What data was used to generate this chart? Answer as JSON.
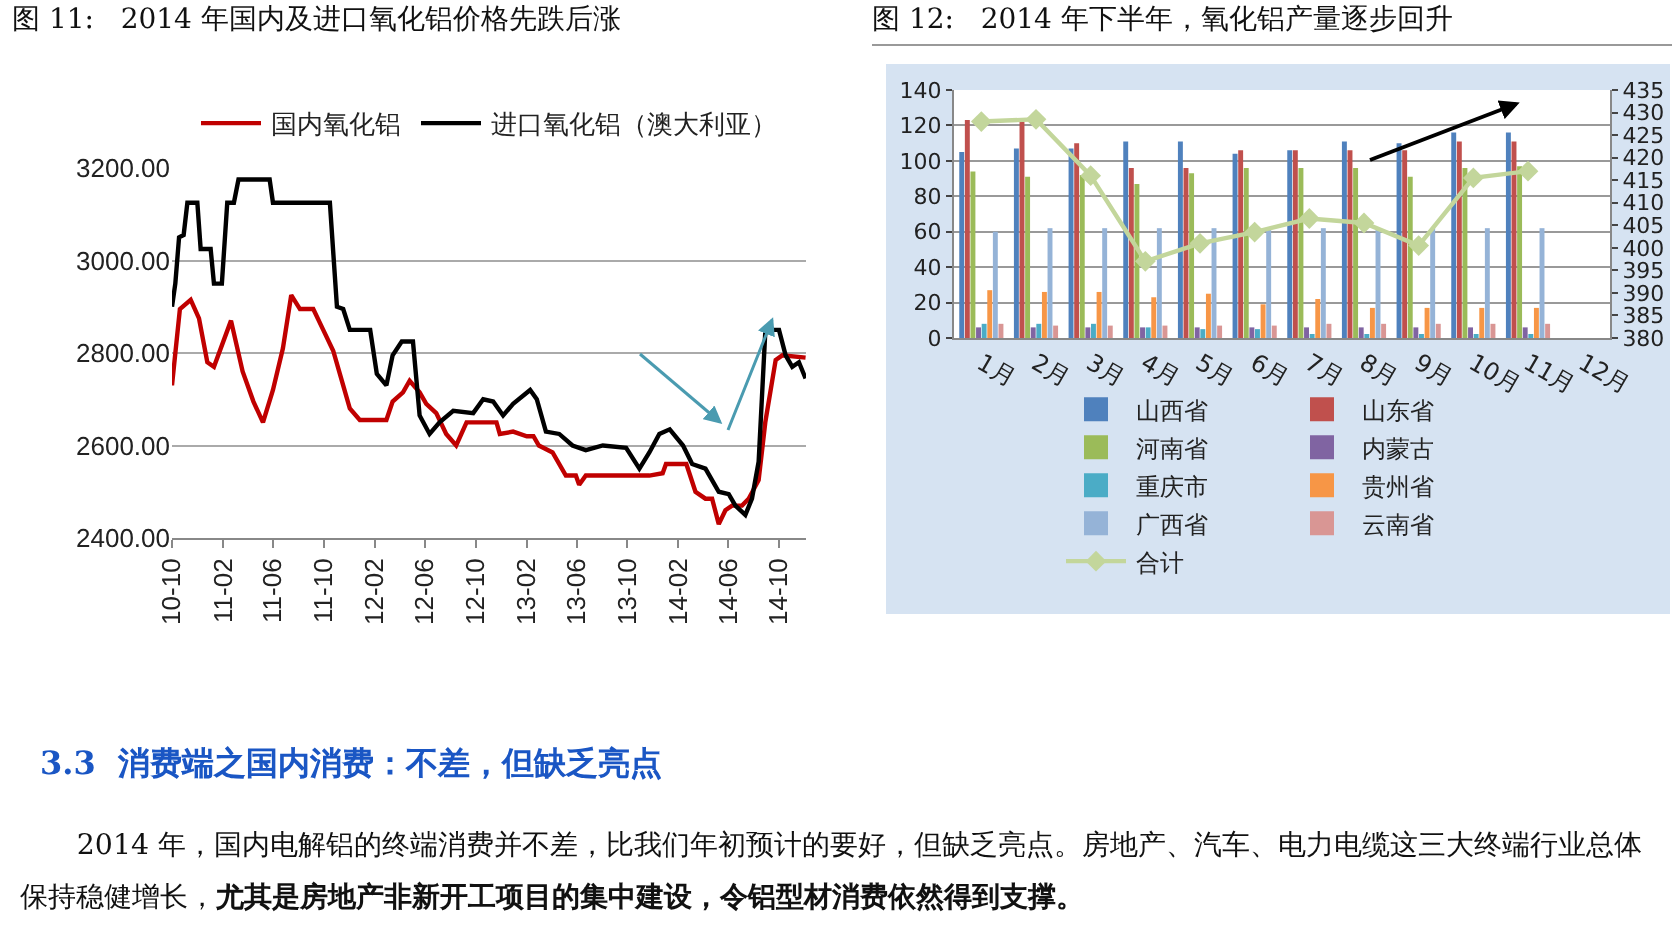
{
  "chart_data": [
    {
      "type": "line",
      "title": "图 11:   2014 年国内及进口氧化铝价格先跌后涨",
      "legend": "top",
      "grid": "y",
      "xlim": [
        "2010-10-01",
        "2014-12-05"
      ],
      "ylim": [
        2400,
        3200
      ],
      "xticks": [
        {
          "value": "2010-10-01",
          "label": "10-10"
        },
        {
          "value": "2011-02-01",
          "label": "11-02"
        },
        {
          "value": "2011-06-01",
          "label": "11-06"
        },
        {
          "value": "2011-10-01",
          "label": "11-10"
        },
        {
          "value": "2012-02-01",
          "label": "12-02"
        },
        {
          "value": "2012-06-01",
          "label": "12-06"
        },
        {
          "value": "2012-10-01",
          "label": "12-10"
        },
        {
          "value": "2013-02-01",
          "label": "13-02"
        },
        {
          "value": "2013-06-01",
          "label": "13-06"
        },
        {
          "value": "2013-10-01",
          "label": "13-10"
        },
        {
          "value": "2014-02-01",
          "label": "14-02"
        },
        {
          "value": "2014-06-01",
          "label": "14-06"
        },
        {
          "value": "2014-10-01",
          "label": "14-10"
        }
      ],
      "yticks": [
        {
          "value": 2400,
          "label": "2400.00"
        },
        {
          "value": 2600,
          "label": "2600.00"
        },
        {
          "value": 2800,
          "label": "2800.00"
        },
        {
          "value": 3000,
          "label": "3000.00"
        },
        {
          "value": 3200,
          "label": "3200.00"
        }
      ],
      "series": [
        {
          "name": "国内氧化铝",
          "color": "#c00000",
          "x": [
            "2010-10-01",
            "2010-10-20",
            "2010-11-15",
            "2010-12-05",
            "2010-12-25",
            "2011-01-10",
            "2011-02-20",
            "2011-03-20",
            "2011-04-15",
            "2011-05-08",
            "2011-06-01",
            "2011-06-25",
            "2011-07-15",
            "2011-08-05",
            "2011-09-06",
            "2011-09-30",
            "2011-10-24",
            "2011-11-17",
            "2011-12-03",
            "2011-12-27",
            "2012-02-29",
            "2012-03-15",
            "2012-04-09",
            "2012-04-25",
            "2012-05-19",
            "2012-06-04",
            "2012-06-28",
            "2012-07-22",
            "2012-08-15",
            "2012-09-09",
            "2012-11-20",
            "2012-11-28",
            "2012-12-30",
            "2013-02-01",
            "2013-02-17",
            "2013-03-02",
            "2013-04-04",
            "2013-05-06",
            "2013-05-30",
            "2013-06-07",
            "2013-06-23",
            "2013-11-23",
            "2013-12-25",
            "2014-01-02",
            "2014-02-20",
            "2014-03-14",
            "2014-04-07",
            "2014-04-23",
            "2014-05-09",
            "2014-05-25",
            "2014-06-10",
            "2014-07-04",
            "2014-07-20",
            "2014-08-13",
            "2014-08-29",
            "2014-09-23",
            "2014-10-09",
            "2014-12-04"
          ],
          "values": [
            2730,
            2895,
            2915,
            2875,
            2780,
            2770,
            2870,
            2760,
            2695,
            2650,
            2720,
            2810,
            2925,
            2895,
            2895,
            2850,
            2805,
            2730,
            2680,
            2655,
            2655,
            2695,
            2715,
            2740,
            2715,
            2690,
            2670,
            2625,
            2600,
            2650,
            2650,
            2625,
            2630,
            2620,
            2620,
            2600,
            2585,
            2535,
            2535,
            2515,
            2535,
            2535,
            2540,
            2560,
            2560,
            2500,
            2485,
            2485,
            2430,
            2460,
            2470,
            2470,
            2485,
            2525,
            2650,
            2785,
            2795,
            2790
          ]
        },
        {
          "name": "进口氧化铝（澳大利亚）",
          "color": "#000000",
          "x": [
            "2010-10-01",
            "2010-10-09",
            "2010-10-18",
            "2010-10-29",
            "2010-11-07",
            "2010-12-01",
            "2010-12-09",
            "2011-01-02",
            "2011-01-10",
            "2011-01-29",
            "2011-02-11",
            "2011-02-27",
            "2011-03-10",
            "2011-05-24",
            "2011-06-01",
            "2011-10-16",
            "2011-11-02",
            "2011-11-17",
            "2011-12-03",
            "2012-01-21",
            "2012-02-06",
            "2012-02-29",
            "2012-03-15",
            "2012-04-06",
            "2012-05-03",
            "2012-05-19",
            "2012-06-12",
            "2012-07-06",
            "2012-08-08",
            "2012-09-25",
            "2012-10-19",
            "2012-11-12",
            "2012-12-06",
            "2012-12-30",
            "2013-02-09",
            "2013-02-25",
            "2013-03-19",
            "2013-04-20",
            "2013-05-22",
            "2013-06-23",
            "2013-08-03",
            "2013-09-28",
            "2013-10-30",
            "2013-11-23",
            "2013-12-17",
            "2014-01-11",
            "2014-02-12",
            "2014-03-06",
            "2014-04-07",
            "2014-05-09",
            "2014-06-02",
            "2014-06-18",
            "2014-07-12",
            "2014-07-28",
            "2014-08-13",
            "2014-08-29",
            "2014-09-15",
            "2014-10-01",
            "2014-10-17",
            "2014-11-02",
            "2014-11-18",
            "2014-12-04"
          ],
          "values": [
            2900,
            2950,
            3050,
            3055,
            3125,
            3125,
            3025,
            3025,
            2950,
            2950,
            3125,
            3125,
            3175,
            3175,
            3125,
            3125,
            2900,
            2895,
            2850,
            2850,
            2755,
            2730,
            2795,
            2825,
            2825,
            2665,
            2625,
            2650,
            2675,
            2670,
            2700,
            2695,
            2665,
            2690,
            2720,
            2700,
            2630,
            2625,
            2600,
            2590,
            2600,
            2595,
            2550,
            2585,
            2625,
            2635,
            2600,
            2560,
            2550,
            2500,
            2495,
            2470,
            2450,
            2485,
            2565,
            2845,
            2850,
            2850,
            2795,
            2770,
            2780,
            2745
          ]
        }
      ]
    },
    {
      "type": "bar",
      "title": "图 12:   2014 年下半年，氧化铝产量逐步回升",
      "legend": "bottom",
      "grid": "y",
      "marker": "diamond",
      "categories": [
        "1月",
        "2月",
        "3月",
        "4月",
        "5月",
        "6月",
        "7月",
        "8月",
        "9月",
        "10月",
        "11月",
        "12月"
      ],
      "ylim": [
        0,
        140
      ],
      "yticks": [
        0,
        20,
        40,
        60,
        80,
        100,
        120,
        140
      ],
      "y2lim": [
        380,
        435
      ],
      "y2ticks": [
        380,
        385,
        390,
        395,
        400,
        405,
        410,
        415,
        420,
        425,
        430,
        435
      ],
      "series": [
        {
          "name": "山西省",
          "color": "#4f81bd",
          "values": [
            105,
            107,
            107,
            111,
            111,
            104,
            106,
            111,
            110,
            116,
            116,
            null
          ]
        },
        {
          "name": "山东省",
          "color": "#c0504d",
          "values": [
            123,
            122,
            110,
            96,
            96,
            106,
            106,
            106,
            106,
            111,
            111,
            null
          ]
        },
        {
          "name": "河南省",
          "color": "#9bbb59",
          "values": [
            94,
            91,
            92,
            87,
            93,
            96,
            96,
            96,
            91,
            96,
            97,
            null
          ]
        },
        {
          "name": "内蒙古",
          "color": "#8064a2",
          "values": [
            6,
            6,
            6,
            6,
            6,
            6,
            6,
            6,
            6,
            6,
            6,
            null
          ]
        },
        {
          "name": "重庆市",
          "color": "#4bacc6",
          "values": [
            8,
            8,
            8,
            6,
            5,
            5,
            2,
            2,
            2,
            2,
            2,
            null
          ]
        },
        {
          "name": "贵州省",
          "color": "#f79646",
          "values": [
            27,
            26,
            26,
            23,
            25,
            19,
            22,
            17,
            17,
            17,
            17,
            null
          ]
        },
        {
          "name": "广西省",
          "color": "#95b3d7",
          "values": [
            60,
            62,
            62,
            62,
            62,
            62,
            62,
            62,
            62,
            62,
            62,
            null
          ]
        },
        {
          "name": "云南省",
          "color": "#d99694",
          "values": [
            8,
            7,
            7,
            7,
            7,
            7,
            8,
            8,
            8,
            8,
            8,
            null
          ]
        },
        {
          "name": "合计",
          "type": "line",
          "axis": "y2",
          "color": "#c3d69b",
          "values": [
            428,
            428.5,
            416,
            397,
            401,
            403.5,
            406.5,
            405.5,
            400.5,
            415.5,
            417,
            null
          ]
        }
      ]
    },
    {
      "type": "other",
      "annotations": [
        "3.3  消费端之国内消费：不差，但缺乏亮点",
        "2014 年，国内电解铝的终端消费并不差，比我们年初预计的要好，但缺乏亮点。房地产、汽车、电力电缆这三大终端行业总体保持稳健增长，",
        "尤其是房地产非新开工项目的集中建设，令铝型材消费依然得到支撑。"
      ]
    }
  ]
}
